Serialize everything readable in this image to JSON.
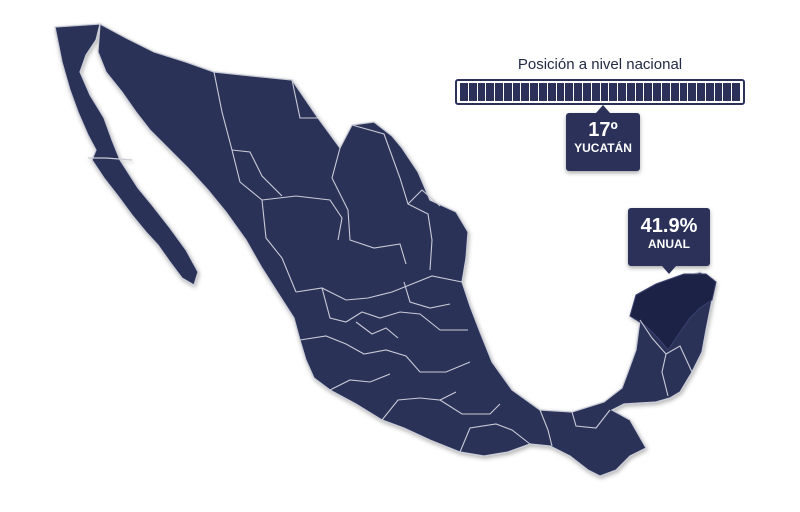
{
  "ranking": {
    "title": "Posición a nivel nacional",
    "position": 17,
    "total_states": 32,
    "rank_label": "17º",
    "state_label": "YUCATÁN"
  },
  "highlight": {
    "value_label": "41.9%",
    "period_label": "ANUAL"
  },
  "colors": {
    "map_fill": "#2b3158",
    "highlight_fill": "#1f2444",
    "borders": "#c9cbd6",
    "background": "#ffffff"
  }
}
